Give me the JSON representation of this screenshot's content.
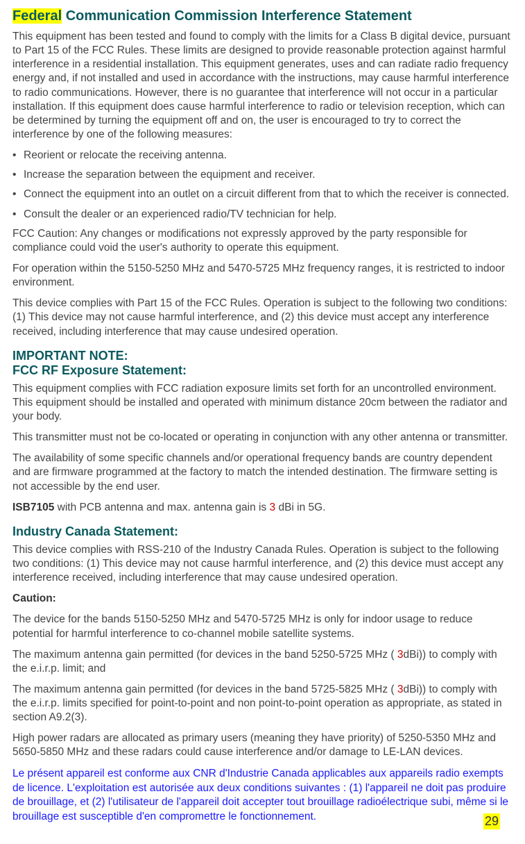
{
  "heading": {
    "highlighted_word": "Federal",
    "rest": " Communication Commission Interference Statement"
  },
  "intro_para": "This equipment has been tested and found to comply with the limits for a Class B digital device, pursuant to Part 15 of the FCC Rules. These limits are designed to provide reasonable protection against harmful interference in a residential installation. This equipment generates, uses and can radiate radio frequency energy and, if not installed and used in accordance with the instructions, may cause harmful interference to radio communications. However, there is no guarantee that interference will not occur in a particular installation. If this equipment does cause harmful interference to radio or television reception, which can be determined by turning the equipment off and on, the user is encouraged to try to correct the interference by one of the following measures:",
  "bullets": [
    "Reorient or relocate the receiving antenna.",
    "Increase the separation between the equipment and receiver.",
    "Connect the equipment into an outlet on a circuit different from that to which the receiver is connected.",
    "Consult the dealer or an experienced radio/TV technician for help."
  ],
  "paras_after_bullets": [
    "FCC Caution: Any changes or modifications not expressly approved by the party responsible for compliance could void the user's authority to operate this equipment.",
    "For operation within the 5150-5250 MHz and 5470-5725 MHz frequency ranges, it is restricted to indoor environment.",
    "This device complies with Part 15 of the FCC Rules. Operation is subject to the following two conditions: (1) This device may not cause harmful interference, and (2) this device must accept any interference received, including interference that may cause undesired operation."
  ],
  "important_note": {
    "line1": "IMPORTANT NOTE:",
    "line2": "FCC RF Exposure Statement:"
  },
  "rf_paras": [
    "This equipment complies with FCC radiation exposure limits set forth for an uncontrolled environment. This equipment should be installed and operated with minimum distance 20cm between the radiator and your body.",
    "This transmitter must not be co-located or operating in conjunction with any other antenna or transmitter.",
    "The availability of some specific channels and/or operational frequency bands are country dependent and are firmware programmed at the factory to match the intended destination. The firmware setting is not accessible by the end user."
  ],
  "isb": {
    "prefix": "ISB7105",
    "mid": " with PCB antenna and max. antenna gain is ",
    "gain": "3",
    "suffix": " dBi in 5G."
  },
  "industry_title": "Industry Canada Statement:",
  "industry_intro": "This device complies with RSS-210 of the Industry Canada Rules. Operation is subject to the following two conditions: (1) This device may not cause harmful interference, and (2) this device must accept any interference received, including interference that may cause undesired operation.",
  "caution_label": "Caution:",
  "caution_paras_simple": [
    "The device for the bands 5150-5250 MHz and 5470-5725 MHz is only for indoor usage to reduce potential for harmful interference to co-channel mobile satellite systems."
  ],
  "gain_para1": {
    "before": "The maximum antenna gain permitted (for devices in the band 5250-5725 MHz ( ",
    "gain": "3",
    "after": "dBi)) to comply with the e.i.r.p. limit; and"
  },
  "gain_para2": {
    "before": "The maximum antenna gain permitted (for devices in the band 5725-5825 MHz ( ",
    "gain": "3",
    "after": "dBi)) to comply with the e.i.r.p. limits specified for point-to-point and non point-to-point operation as appropriate, as stated in section A9.2(3)."
  },
  "radar_para": "High power radars are allocated as primary users (meaning they have priority) of 5250-5350 MHz and 5650-5850 MHz and these radars could cause interference and/or damage to LE-LAN devices.",
  "french_para": "Le présent appareil est conforme aux CNR d'Industrie Canada applicables aux appareils radio exempts de licence. L'exploitation est autorisée aux deux conditions suivantes : (1) l'appareil ne doit pas produire de brouillage, et (2) l'utilisateur de l'appareil doit accepter tout brouillage radioélectrique subi, même si le brouillage est susceptible d'en compromettre le fonctionnement.",
  "page_number": "29",
  "colors": {
    "highlight": "#ffff00",
    "heading_teal": "#0b5a5e",
    "body_text": "#444444",
    "red_accent": "#d10000",
    "blue_text": "#1a1aff",
    "background": "#ffffff"
  }
}
